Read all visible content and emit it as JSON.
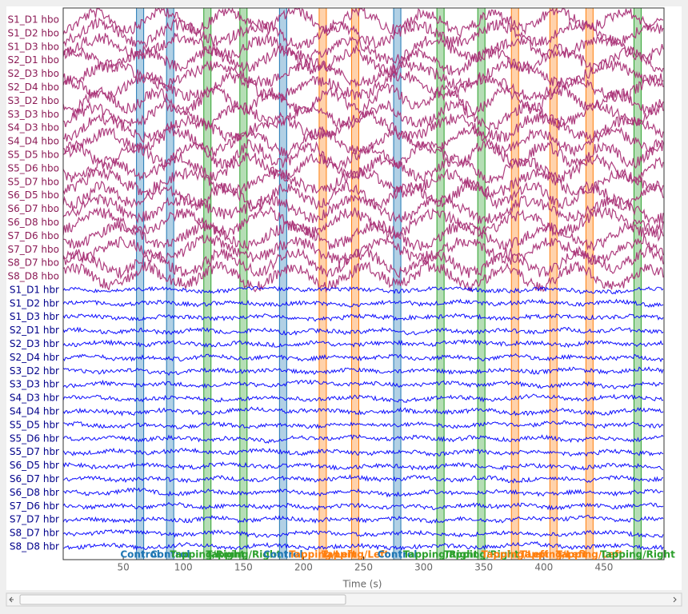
{
  "chart_data": {
    "type": "raw-browser",
    "x_label": "Time (s)",
    "xlim": [
      0,
      500
    ],
    "xticks": [
      50,
      100,
      150,
      200,
      250,
      300,
      350,
      400,
      450
    ],
    "channels": [
      {
        "name": "S1_D1 hbo",
        "color": "#aa3377"
      },
      {
        "name": "S1_D2 hbo",
        "color": "#aa3377"
      },
      {
        "name": "S1_D3 hbo",
        "color": "#aa3377"
      },
      {
        "name": "S2_D1 hbo",
        "color": "#aa3377"
      },
      {
        "name": "S2_D3 hbo",
        "color": "#aa3377"
      },
      {
        "name": "S2_D4 hbo",
        "color": "#aa3377"
      },
      {
        "name": "S3_D2 hbo",
        "color": "#aa3377"
      },
      {
        "name": "S3_D3 hbo",
        "color": "#aa3377"
      },
      {
        "name": "S4_D3 hbo",
        "color": "#aa3377"
      },
      {
        "name": "S4_D4 hbo",
        "color": "#aa3377"
      },
      {
        "name": "S5_D5 hbo",
        "color": "#aa3377"
      },
      {
        "name": "S5_D6 hbo",
        "color": "#aa3377"
      },
      {
        "name": "S5_D7 hbo",
        "color": "#aa3377"
      },
      {
        "name": "S6_D5 hbo",
        "color": "#aa3377"
      },
      {
        "name": "S6_D7 hbo",
        "color": "#aa3377"
      },
      {
        "name": "S6_D8 hbo",
        "color": "#aa3377"
      },
      {
        "name": "S7_D6 hbo",
        "color": "#aa3377"
      },
      {
        "name": "S7_D7 hbo",
        "color": "#aa3377"
      },
      {
        "name": "S8_D7 hbo",
        "color": "#aa3377"
      },
      {
        "name": "S8_D8 hbo",
        "color": "#aa3377"
      },
      {
        "name": "S1_D1 hbr",
        "color": "#0000ff"
      },
      {
        "name": "S1_D2 hbr",
        "color": "#0000ff"
      },
      {
        "name": "S1_D3 hbr",
        "color": "#0000ff"
      },
      {
        "name": "S2_D1 hbr",
        "color": "#0000ff"
      },
      {
        "name": "S2_D3 hbr",
        "color": "#0000ff"
      },
      {
        "name": "S2_D4 hbr",
        "color": "#0000ff"
      },
      {
        "name": "S3_D2 hbr",
        "color": "#0000ff"
      },
      {
        "name": "S3_D3 hbr",
        "color": "#0000ff"
      },
      {
        "name": "S4_D3 hbr",
        "color": "#0000ff"
      },
      {
        "name": "S4_D4 hbr",
        "color": "#0000ff"
      },
      {
        "name": "S5_D5 hbr",
        "color": "#0000ff"
      },
      {
        "name": "S5_D6 hbr",
        "color": "#0000ff"
      },
      {
        "name": "S5_D7 hbr",
        "color": "#0000ff"
      },
      {
        "name": "S6_D5 hbr",
        "color": "#0000ff"
      },
      {
        "name": "S6_D7 hbr",
        "color": "#0000ff"
      },
      {
        "name": "S6_D8 hbr",
        "color": "#0000ff"
      },
      {
        "name": "S7_D6 hbr",
        "color": "#0000ff"
      },
      {
        "name": "S7_D7 hbr",
        "color": "#0000ff"
      },
      {
        "name": "S8_D7 hbr",
        "color": "#0000ff"
      },
      {
        "name": "S8_D8 hbr",
        "color": "#0000ff"
      }
    ],
    "annotations": [
      {
        "description": "Control",
        "onset": 61,
        "duration": 6,
        "color": "#1f77b4"
      },
      {
        "description": "Control",
        "onset": 86,
        "duration": 6,
        "color": "#1f77b4"
      },
      {
        "description": "Tapping/Right",
        "onset": 117,
        "duration": 6,
        "color": "#2ca02c"
      },
      {
        "description": "Tapping/Right",
        "onset": 147,
        "duration": 6,
        "color": "#2ca02c"
      },
      {
        "description": "Control",
        "onset": 180,
        "duration": 6,
        "color": "#1f77b4"
      },
      {
        "description": "Tapping/Left",
        "onset": 213,
        "duration": 6,
        "color": "#ff7f0e"
      },
      {
        "description": "Tapping/Left",
        "onset": 240,
        "duration": 6,
        "color": "#ff7f0e"
      },
      {
        "description": "Control",
        "onset": 275,
        "duration": 6,
        "color": "#1f77b4"
      },
      {
        "description": "Tapping/Right",
        "onset": 311,
        "duration": 6,
        "color": "#2ca02c"
      },
      {
        "description": "Tapping/Right",
        "onset": 345,
        "duration": 6,
        "color": "#2ca02c"
      },
      {
        "description": "Tapping/Left",
        "onset": 373,
        "duration": 6,
        "color": "#ff7f0e"
      },
      {
        "description": "Tapping/Left",
        "onset": 405,
        "duration": 6,
        "color": "#ff7f0e"
      },
      {
        "description": "Tapping/Left",
        "onset": 435,
        "duration": 6,
        "color": "#ff7f0e"
      },
      {
        "description": "Tapping/Right",
        "onset": 475,
        "duration": 6,
        "color": "#2ca02c"
      }
    ]
  }
}
